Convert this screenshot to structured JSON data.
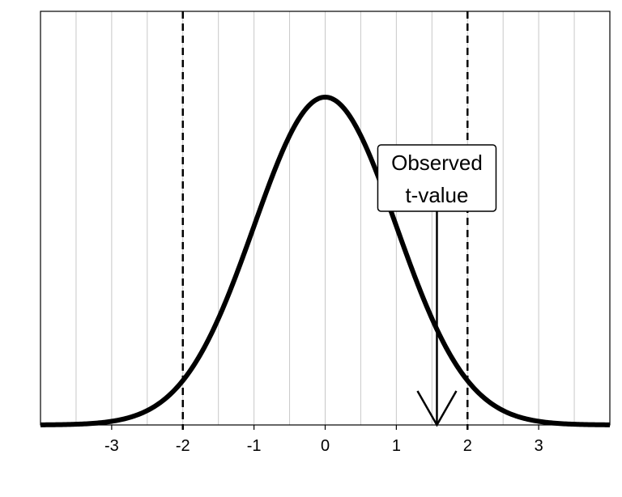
{
  "chart_data": {
    "type": "line",
    "title": "",
    "xlabel": "",
    "ylabel": "",
    "xlim": [
      -4,
      4
    ],
    "ylim": [
      0,
      0.4
    ],
    "grid": {
      "vertical_minor_step": 0.5,
      "horizontal": false
    },
    "x_ticks": [
      -3,
      -2,
      -1,
      0,
      1,
      2,
      3
    ],
    "x_tick_labels": [
      "-3",
      "-2",
      "-1",
      "0",
      "1",
      "2",
      "3"
    ],
    "curve": {
      "distribution": "t-distribution (approx. standard normal)",
      "mean": 0,
      "sd": 1,
      "peak_density": 0.4
    },
    "critical_values": [
      -2,
      2
    ],
    "annotation": {
      "lines": [
        "Observed",
        "t-value"
      ],
      "x": 1.57
    }
  }
}
